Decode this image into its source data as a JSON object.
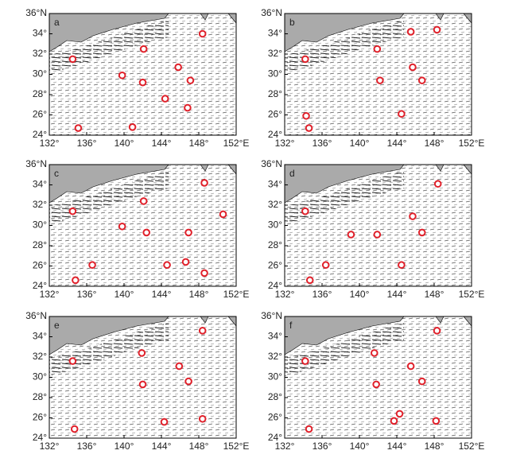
{
  "chart_data": [
    {
      "type": "scatter",
      "title": "a",
      "color": "#e0202a",
      "x": [
        148.4,
        134.5,
        142.1,
        139.8,
        142.0,
        145.8,
        147.1,
        144.4,
        146.8,
        135.1,
        140.9
      ],
      "y": [
        34.0,
        31.5,
        32.5,
        29.9,
        29.2,
        30.7,
        29.4,
        27.6,
        26.7,
        24.7,
        24.8
      ],
      "xlim": [
        132,
        152
      ],
      "ylim": [
        24,
        36
      ],
      "xticks": [
        {
          "value": 132,
          "label": "132°"
        },
        {
          "value": 136,
          "label": "136°"
        },
        {
          "value": 140,
          "label": "140°"
        },
        {
          "value": 144,
          "label": "144°"
        },
        {
          "value": 148,
          "label": "148°"
        },
        {
          "value": 152,
          "label": "152°E"
        }
      ],
      "yticks": [
        {
          "value": 24,
          "label": "24°"
        },
        {
          "value": 26,
          "label": "26°"
        },
        {
          "value": 28,
          "label": "28°"
        },
        {
          "value": 30,
          "label": "30°"
        },
        {
          "value": 32,
          "label": "32°"
        },
        {
          "value": 34,
          "label": "34°"
        },
        {
          "value": 36,
          "label": "36°N"
        }
      ]
    },
    {
      "type": "scatter",
      "title": "b",
      "color": "#e0202a",
      "x": [
        145.5,
        148.3,
        134.2,
        141.9,
        145.7,
        142.2,
        146.7,
        134.3,
        144.5,
        134.6
      ],
      "y": [
        34.2,
        34.4,
        31.5,
        32.5,
        30.7,
        29.4,
        29.4,
        25.9,
        26.1,
        24.7
      ],
      "xlim": [
        132,
        152
      ],
      "ylim": [
        24,
        36
      ],
      "xticks": [
        {
          "value": 132,
          "label": "132°"
        },
        {
          "value": 136,
          "label": "136°"
        },
        {
          "value": 140,
          "label": "140°"
        },
        {
          "value": 144,
          "label": "144°"
        },
        {
          "value": 148,
          "label": "148°"
        },
        {
          "value": 152,
          "label": "152°E"
        }
      ],
      "yticks": [
        {
          "value": 24,
          "label": "24°"
        },
        {
          "value": 26,
          "label": "26°"
        },
        {
          "value": 28,
          "label": "28°"
        },
        {
          "value": 30,
          "label": "30°"
        },
        {
          "value": 32,
          "label": "32°"
        },
        {
          "value": 34,
          "label": "34°"
        },
        {
          "value": 36,
          "label": "36°N"
        }
      ]
    },
    {
      "type": "scatter",
      "title": "c",
      "color": "#e0202a",
      "x": [
        148.6,
        134.5,
        142.1,
        150.6,
        139.8,
        142.4,
        146.9,
        136.6,
        144.6,
        146.6,
        148.6,
        134.8
      ],
      "y": [
        34.2,
        31.4,
        32.4,
        31.1,
        29.9,
        29.3,
        29.3,
        26.1,
        26.1,
        26.4,
        25.3,
        24.6
      ],
      "xlim": [
        132,
        152
      ],
      "ylim": [
        24,
        36
      ],
      "xticks": [
        {
          "value": 132,
          "label": "132°"
        },
        {
          "value": 136,
          "label": "136°"
        },
        {
          "value": 140,
          "label": "140°"
        },
        {
          "value": 144,
          "label": "144°"
        },
        {
          "value": 148,
          "label": "148°"
        },
        {
          "value": 152,
          "label": "152°E"
        }
      ],
      "yticks": [
        {
          "value": 24,
          "label": "24°"
        },
        {
          "value": 26,
          "label": "26°"
        },
        {
          "value": 28,
          "label": "28°"
        },
        {
          "value": 30,
          "label": "30°"
        },
        {
          "value": 32,
          "label": "32°"
        },
        {
          "value": 34,
          "label": "34°"
        },
        {
          "value": 36,
          "label": "36°N"
        }
      ]
    },
    {
      "type": "scatter",
      "title": "d",
      "color": "#e0202a",
      "x": [
        148.4,
        134.2,
        145.7,
        146.7,
        139.1,
        141.9,
        136.4,
        144.5,
        134.7
      ],
      "y": [
        34.1,
        31.4,
        30.9,
        29.3,
        29.1,
        29.1,
        26.1,
        26.1,
        24.6
      ],
      "xlim": [
        132,
        152
      ],
      "ylim": [
        24,
        36
      ],
      "xticks": [
        {
          "value": 132,
          "label": "132°"
        },
        {
          "value": 136,
          "label": "136°"
        },
        {
          "value": 140,
          "label": "140°"
        },
        {
          "value": 144,
          "label": "144°"
        },
        {
          "value": 148,
          "label": "148°"
        },
        {
          "value": 152,
          "label": "152°E"
        }
      ],
      "yticks": [
        {
          "value": 24,
          "label": "24°"
        },
        {
          "value": 26,
          "label": "26°"
        },
        {
          "value": 28,
          "label": "28°"
        },
        {
          "value": 30,
          "label": "30°"
        },
        {
          "value": 32,
          "label": "32°"
        },
        {
          "value": 34,
          "label": "34°"
        },
        {
          "value": 36,
          "label": "36°N"
        }
      ]
    },
    {
      "type": "scatter",
      "title": "e",
      "color": "#e0202a",
      "x": [
        148.4,
        141.9,
        134.5,
        145.9,
        146.9,
        142.0,
        144.3,
        148.4,
        134.7
      ],
      "y": [
        34.6,
        32.4,
        31.6,
        31.1,
        29.6,
        29.3,
        25.6,
        25.9,
        24.9
      ],
      "xlim": [
        132,
        152
      ],
      "ylim": [
        24,
        36
      ],
      "xticks": [
        {
          "value": 132,
          "label": "132°"
        },
        {
          "value": 136,
          "label": "136°"
        },
        {
          "value": 140,
          "label": "140°"
        },
        {
          "value": 144,
          "label": "144°"
        },
        {
          "value": 148,
          "label": "148°"
        },
        {
          "value": 152,
          "label": "152°E"
        }
      ],
      "yticks": [
        {
          "value": 24,
          "label": "24°"
        },
        {
          "value": 26,
          "label": "26°"
        },
        {
          "value": 28,
          "label": "28°"
        },
        {
          "value": 30,
          "label": "30°"
        },
        {
          "value": 32,
          "label": "32°"
        },
        {
          "value": 34,
          "label": "34°"
        },
        {
          "value": 36,
          "label": "36°N"
        }
      ]
    },
    {
      "type": "scatter",
      "title": "f",
      "color": "#e0202a",
      "x": [
        148.3,
        141.6,
        134.2,
        145.5,
        146.7,
        141.8,
        144.3,
        143.7,
        148.2,
        134.6
      ],
      "y": [
        34.6,
        32.4,
        31.6,
        31.1,
        29.6,
        29.3,
        26.4,
        25.7,
        25.7,
        24.9
      ],
      "xlim": [
        132,
        152
      ],
      "ylim": [
        24,
        36
      ],
      "xticks": [
        {
          "value": 132,
          "label": "132°"
        },
        {
          "value": 136,
          "label": "136°"
        },
        {
          "value": 140,
          "label": "140°"
        },
        {
          "value": 144,
          "label": "144°"
        },
        {
          "value": 148,
          "label": "148°"
        },
        {
          "value": 152,
          "label": "152°E"
        }
      ],
      "yticks": [
        {
          "value": 24,
          "label": "24°"
        },
        {
          "value": 26,
          "label": "26°"
        },
        {
          "value": 28,
          "label": "28°"
        },
        {
          "value": 30,
          "label": "30°"
        },
        {
          "value": 32,
          "label": "32°"
        },
        {
          "value": 34,
          "label": "34°"
        },
        {
          "value": 36,
          "label": "36°N"
        }
      ]
    }
  ]
}
